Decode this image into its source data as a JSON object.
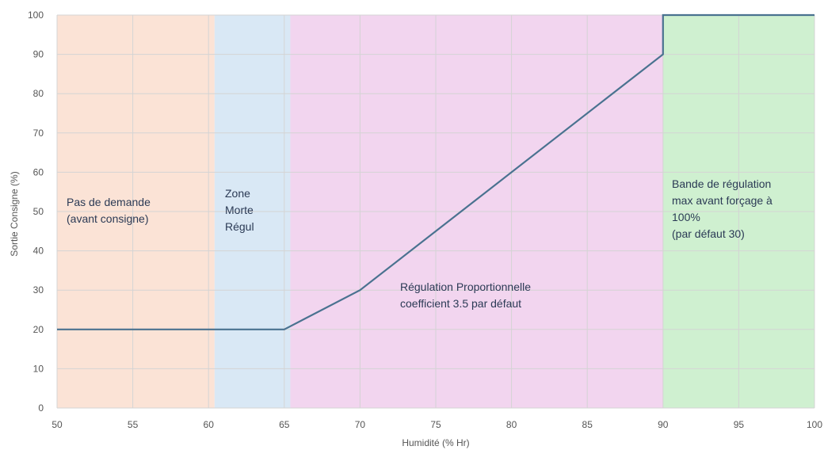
{
  "chart_data": {
    "type": "line",
    "title": "",
    "xlabel": "Humidité (% Hr)",
    "ylabel": "Sortie Consigne (%)",
    "xlim": [
      50,
      100
    ],
    "ylim": [
      0,
      100
    ],
    "x_ticks": [
      50,
      55,
      60,
      65,
      70,
      75,
      80,
      85,
      90,
      95,
      100
    ],
    "y_ticks": [
      0,
      10,
      20,
      30,
      40,
      50,
      60,
      70,
      80,
      90,
      100
    ],
    "grid": true,
    "series": [
      {
        "x": [
          50,
          65,
          70,
          90,
          90,
          100
        ],
        "y": [
          20,
          20,
          30,
          90,
          100,
          100
        ],
        "color": "#4a7290"
      }
    ],
    "zones": [
      {
        "from": 50,
        "to": 60.4,
        "color": "#fbe3d6",
        "label_lines": [
          "Pas de demande",
          "(avant consigne)"
        ]
      },
      {
        "from": 60.4,
        "to": 65.4,
        "color": "#d9e8f5",
        "label_lines": [
          "Zone",
          "Morte",
          "Régul"
        ]
      },
      {
        "from": 65.4,
        "to": 90,
        "color": "#f2d5ef",
        "label_lines": [
          "Régulation Proportionnelle",
          "coefficient 3.5 par défaut"
        ]
      },
      {
        "from": 90,
        "to": 100,
        "color": "#cff0d0",
        "label_lines": [
          "Bande de régulation",
          "max avant forçage à",
          "100%",
          "(par défaut 30)"
        ]
      }
    ]
  }
}
